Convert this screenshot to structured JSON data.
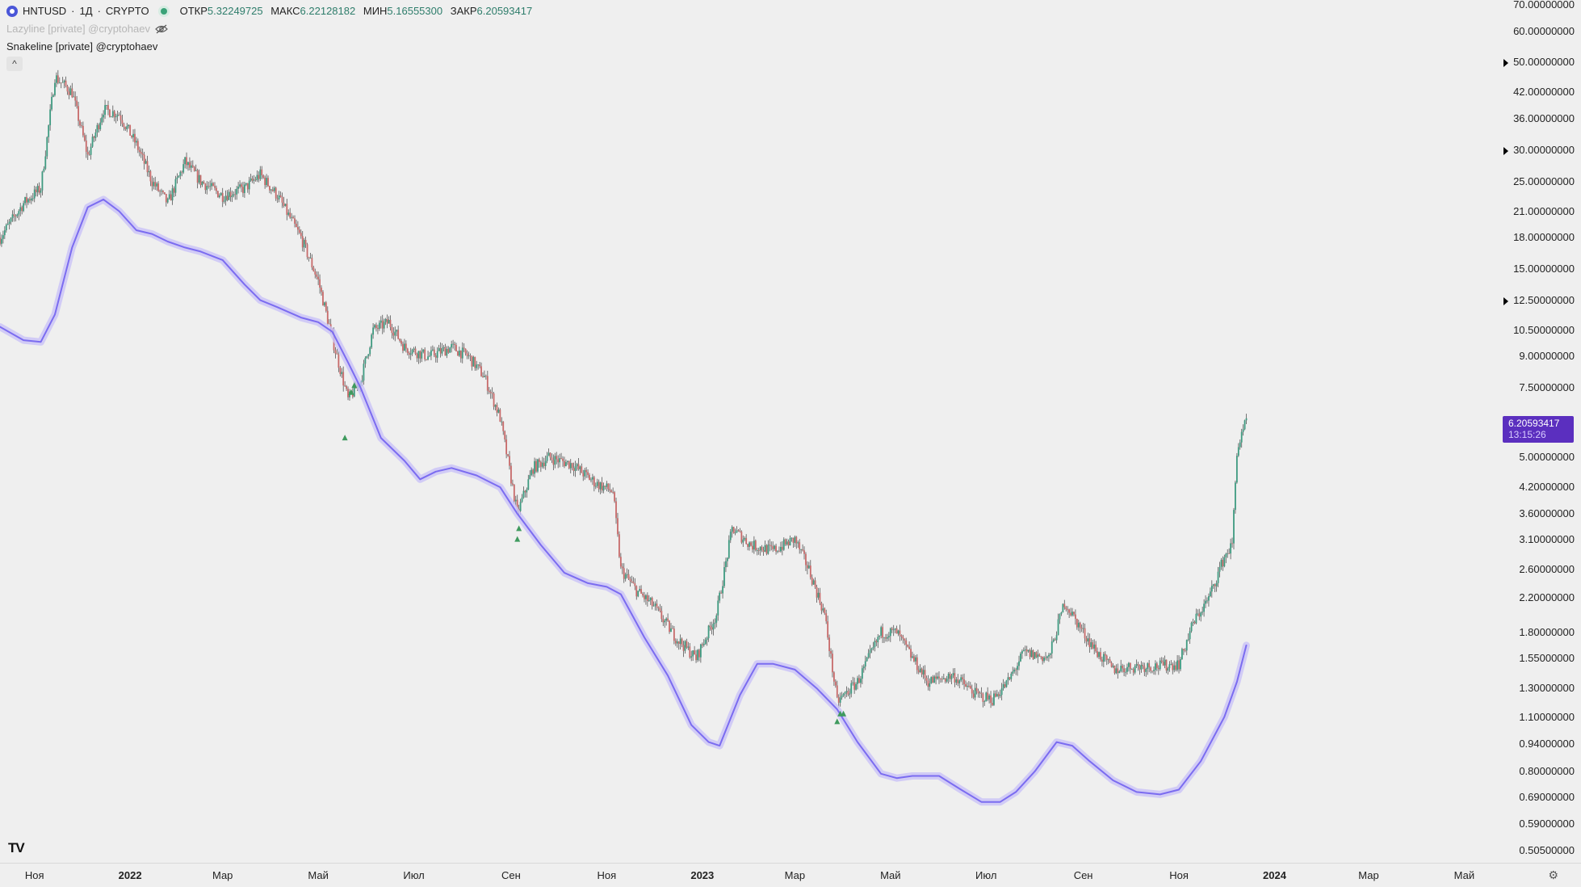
{
  "header": {
    "symbol": "HNTUSD",
    "separator1": "·",
    "interval": "1Д",
    "separator2": "·",
    "exchange": "CRYPTO",
    "ohlc": [
      {
        "key": "ОТКР",
        "value": "5.32249725"
      },
      {
        "key": "МАКС",
        "value": "6.22128182"
      },
      {
        "key": "МИН",
        "value": "5.16555300"
      },
      {
        "key": "ЗАКР",
        "value": "6.20593417"
      }
    ]
  },
  "indicators": [
    {
      "name": "Lazyline [private] @cryptohaev",
      "hidden": true
    },
    {
      "name": "Snakeline [private] @cryptohaev",
      "hidden": false
    }
  ],
  "collapse_label": "^",
  "price_axis": {
    "labels": [
      "70.00000000",
      "60.00000000",
      "50.00000000",
      "42.00000000",
      "36.00000000",
      "30.00000000",
      "25.00000000",
      "21.00000000",
      "18.00000000",
      "15.00000000",
      "12.50000000",
      "10.50000000",
      "9.00000000",
      "7.50000000",
      "5.00000000",
      "4.20000000",
      "3.60000000",
      "3.10000000",
      "2.60000000",
      "2.20000000",
      "1.80000000",
      "1.55000000",
      "1.30000000",
      "1.10000000",
      "0.94000000",
      "0.80000000",
      "0.69000000",
      "0.59000000",
      "0.50500000"
    ],
    "last_price": "6.20593417",
    "countdown": "13:15:26"
  },
  "time_axis": {
    "labels": [
      {
        "text": "Ноя",
        "year": false
      },
      {
        "text": "2022",
        "year": true
      },
      {
        "text": "Мар",
        "year": false
      },
      {
        "text": "Май",
        "year": false
      },
      {
        "text": "Июл",
        "year": false
      },
      {
        "text": "Сен",
        "year": false
      },
      {
        "text": "Ноя",
        "year": false
      },
      {
        "text": "2023",
        "year": true
      },
      {
        "text": "Мар",
        "year": false
      },
      {
        "text": "Май",
        "year": false
      },
      {
        "text": "Июл",
        "year": false
      },
      {
        "text": "Сен",
        "year": false
      },
      {
        "text": "Ноя",
        "year": false
      },
      {
        "text": "2024",
        "year": true
      },
      {
        "text": "Мар",
        "year": false
      },
      {
        "text": "Май",
        "year": false
      }
    ]
  },
  "logo_text": "TV",
  "colors": {
    "background": "#efefef",
    "candle_up": "#3e9a80",
    "candle_down": "#c76a6a",
    "wick": "#555555",
    "snakeline": "#7b6cf0",
    "snakeline_glow": "#c9c2f7",
    "signal": "#3f9a5e",
    "last_price_badge": "#5b2fbf"
  },
  "chart_data": {
    "type": "candlestick",
    "scale": "log",
    "ylim": [
      0.47,
      72
    ],
    "x_range": [
      "2021-10-10",
      "2024-05-25"
    ],
    "price_anchors": [
      {
        "date": "2021-10-10",
        "price": 18.0
      },
      {
        "date": "2021-10-25",
        "price": 22.0
      },
      {
        "date": "2021-11-05",
        "price": 24.0
      },
      {
        "date": "2021-11-14",
        "price": 46.0
      },
      {
        "date": "2021-11-25",
        "price": 42.0
      },
      {
        "date": "2021-12-05",
        "price": 29.0
      },
      {
        "date": "2021-12-15",
        "price": 38.0
      },
      {
        "date": "2021-12-25",
        "price": 37.0
      },
      {
        "date": "2022-01-05",
        "price": 31.0
      },
      {
        "date": "2022-01-15",
        "price": 25.0
      },
      {
        "date": "2022-01-25",
        "price": 22.0
      },
      {
        "date": "2022-02-05",
        "price": 28.0
      },
      {
        "date": "2022-02-15",
        "price": 25.0
      },
      {
        "date": "2022-03-01",
        "price": 23.0
      },
      {
        "date": "2022-03-15",
        "price": 24.0
      },
      {
        "date": "2022-03-25",
        "price": 26.0
      },
      {
        "date": "2022-04-05",
        "price": 23.0
      },
      {
        "date": "2022-04-20",
        "price": 18.0
      },
      {
        "date": "2022-05-01",
        "price": 14.0
      },
      {
        "date": "2022-05-10",
        "price": 10.0
      },
      {
        "date": "2022-05-20",
        "price": 7.0
      },
      {
        "date": "2022-05-28",
        "price": 7.8
      },
      {
        "date": "2022-06-05",
        "price": 10.5
      },
      {
        "date": "2022-06-15",
        "price": 11.0
      },
      {
        "date": "2022-06-25",
        "price": 9.5
      },
      {
        "date": "2022-07-10",
        "price": 9.0
      },
      {
        "date": "2022-07-25",
        "price": 9.5
      },
      {
        "date": "2022-08-05",
        "price": 9.0
      },
      {
        "date": "2022-08-15",
        "price": 8.0
      },
      {
        "date": "2022-08-25",
        "price": 6.3
      },
      {
        "date": "2022-09-05",
        "price": 3.6
      },
      {
        "date": "2022-09-15",
        "price": 4.7
      },
      {
        "date": "2022-09-25",
        "price": 5.0
      },
      {
        "date": "2022-10-10",
        "price": 4.8
      },
      {
        "date": "2022-10-25",
        "price": 4.3
      },
      {
        "date": "2022-11-05",
        "price": 4.1
      },
      {
        "date": "2022-11-10",
        "price": 2.6
      },
      {
        "date": "2022-11-20",
        "price": 2.3
      },
      {
        "date": "2022-12-01",
        "price": 2.1
      },
      {
        "date": "2022-12-15",
        "price": 1.75
      },
      {
        "date": "2022-12-28",
        "price": 1.55
      },
      {
        "date": "2023-01-10",
        "price": 2.0
      },
      {
        "date": "2023-01-20",
        "price": 3.3
      },
      {
        "date": "2023-02-01",
        "price": 3.0
      },
      {
        "date": "2023-02-15",
        "price": 2.9
      },
      {
        "date": "2023-03-01",
        "price": 3.1
      },
      {
        "date": "2023-03-10",
        "price": 2.6
      },
      {
        "date": "2023-03-20",
        "price": 2.0
      },
      {
        "date": "2023-03-28",
        "price": 1.2
      },
      {
        "date": "2023-04-10",
        "price": 1.35
      },
      {
        "date": "2023-04-25",
        "price": 1.8
      },
      {
        "date": "2023-05-05",
        "price": 1.8
      },
      {
        "date": "2023-05-15",
        "price": 1.55
      },
      {
        "date": "2023-05-25",
        "price": 1.35
      },
      {
        "date": "2023-06-10",
        "price": 1.4
      },
      {
        "date": "2023-06-25",
        "price": 1.25
      },
      {
        "date": "2023-07-05",
        "price": 1.22
      },
      {
        "date": "2023-07-15",
        "price": 1.35
      },
      {
        "date": "2023-07-25",
        "price": 1.6
      },
      {
        "date": "2023-08-10",
        "price": 1.55
      },
      {
        "date": "2023-08-20",
        "price": 2.15
      },
      {
        "date": "2023-09-01",
        "price": 1.8
      },
      {
        "date": "2023-09-10",
        "price": 1.6
      },
      {
        "date": "2023-09-20",
        "price": 1.45
      },
      {
        "date": "2023-10-05",
        "price": 1.48
      },
      {
        "date": "2023-10-20",
        "price": 1.48
      },
      {
        "date": "2023-11-01",
        "price": 1.5
      },
      {
        "date": "2023-11-10",
        "price": 1.9
      },
      {
        "date": "2023-11-20",
        "price": 2.2
      },
      {
        "date": "2023-11-30",
        "price": 2.8
      },
      {
        "date": "2023-12-05",
        "price": 3.0
      },
      {
        "date": "2023-12-08",
        "price": 5.2
      },
      {
        "date": "2023-12-12",
        "price": 5.8
      },
      {
        "date": "2023-12-14",
        "price": 6.2
      }
    ],
    "snakeline": [
      {
        "date": "2021-10-10",
        "price": 10.7
      },
      {
        "date": "2021-10-25",
        "price": 9.9
      },
      {
        "date": "2021-11-05",
        "price": 9.8
      },
      {
        "date": "2021-11-14",
        "price": 11.5
      },
      {
        "date": "2021-11-25",
        "price": 17.0
      },
      {
        "date": "2021-12-05",
        "price": 21.5
      },
      {
        "date": "2021-12-15",
        "price": 22.5
      },
      {
        "date": "2021-12-25",
        "price": 21.0
      },
      {
        "date": "2022-01-05",
        "price": 18.8
      },
      {
        "date": "2022-01-15",
        "price": 18.4
      },
      {
        "date": "2022-01-25",
        "price": 17.6
      },
      {
        "date": "2022-02-05",
        "price": 17.0
      },
      {
        "date": "2022-02-15",
        "price": 16.6
      },
      {
        "date": "2022-03-01",
        "price": 15.8
      },
      {
        "date": "2022-03-15",
        "price": 13.7
      },
      {
        "date": "2022-03-25",
        "price": 12.5
      },
      {
        "date": "2022-04-05",
        "price": 12.0
      },
      {
        "date": "2022-04-20",
        "price": 11.3
      },
      {
        "date": "2022-05-01",
        "price": 11.0
      },
      {
        "date": "2022-05-10",
        "price": 10.4
      },
      {
        "date": "2022-05-20",
        "price": 8.7
      },
      {
        "date": "2022-05-28",
        "price": 7.5
      },
      {
        "date": "2022-06-10",
        "price": 5.6
      },
      {
        "date": "2022-06-25",
        "price": 4.9
      },
      {
        "date": "2022-07-05",
        "price": 4.4
      },
      {
        "date": "2022-07-15",
        "price": 4.6
      },
      {
        "date": "2022-07-25",
        "price": 4.7
      },
      {
        "date": "2022-08-10",
        "price": 4.5
      },
      {
        "date": "2022-08-25",
        "price": 4.2
      },
      {
        "date": "2022-09-05",
        "price": 3.6
      },
      {
        "date": "2022-09-20",
        "price": 3.0
      },
      {
        "date": "2022-10-05",
        "price": 2.55
      },
      {
        "date": "2022-10-20",
        "price": 2.4
      },
      {
        "date": "2022-11-01",
        "price": 2.35
      },
      {
        "date": "2022-11-10",
        "price": 2.25
      },
      {
        "date": "2022-11-25",
        "price": 1.75
      },
      {
        "date": "2022-12-10",
        "price": 1.4
      },
      {
        "date": "2022-12-25",
        "price": 1.05
      },
      {
        "date": "2023-01-05",
        "price": 0.95
      },
      {
        "date": "2023-01-12",
        "price": 0.93
      },
      {
        "date": "2023-01-25",
        "price": 1.25
      },
      {
        "date": "2023-02-05",
        "price": 1.5
      },
      {
        "date": "2023-02-15",
        "price": 1.5
      },
      {
        "date": "2023-03-01",
        "price": 1.45
      },
      {
        "date": "2023-03-15",
        "price": 1.3
      },
      {
        "date": "2023-03-28",
        "price": 1.15
      },
      {
        "date": "2023-04-10",
        "price": 0.95
      },
      {
        "date": "2023-04-25",
        "price": 0.79
      },
      {
        "date": "2023-05-05",
        "price": 0.77
      },
      {
        "date": "2023-05-15",
        "price": 0.78
      },
      {
        "date": "2023-06-01",
        "price": 0.78
      },
      {
        "date": "2023-06-15",
        "price": 0.72
      },
      {
        "date": "2023-06-28",
        "price": 0.67
      },
      {
        "date": "2023-07-10",
        "price": 0.67
      },
      {
        "date": "2023-07-20",
        "price": 0.71
      },
      {
        "date": "2023-08-01",
        "price": 0.8
      },
      {
        "date": "2023-08-15",
        "price": 0.95
      },
      {
        "date": "2023-08-25",
        "price": 0.93
      },
      {
        "date": "2023-09-05",
        "price": 0.85
      },
      {
        "date": "2023-09-20",
        "price": 0.76
      },
      {
        "date": "2023-10-05",
        "price": 0.71
      },
      {
        "date": "2023-10-20",
        "price": 0.7
      },
      {
        "date": "2023-11-01",
        "price": 0.72
      },
      {
        "date": "2023-11-15",
        "price": 0.85
      },
      {
        "date": "2023-11-30",
        "price": 1.1
      },
      {
        "date": "2023-12-08",
        "price": 1.35
      },
      {
        "date": "2023-12-14",
        "price": 1.67
      }
    ],
    "signals": [
      {
        "date": "2022-05-18",
        "price": 5.6
      },
      {
        "date": "2022-05-22",
        "price": 7.3
      },
      {
        "date": "2022-05-24",
        "price": 7.6
      },
      {
        "date": "2022-09-05",
        "price": 3.1
      },
      {
        "date": "2022-09-06",
        "price": 3.3
      },
      {
        "date": "2023-03-28",
        "price": 1.07
      },
      {
        "date": "2023-03-30",
        "price": 1.12
      },
      {
        "date": "2023-04-01",
        "price": 1.12
      }
    ]
  }
}
